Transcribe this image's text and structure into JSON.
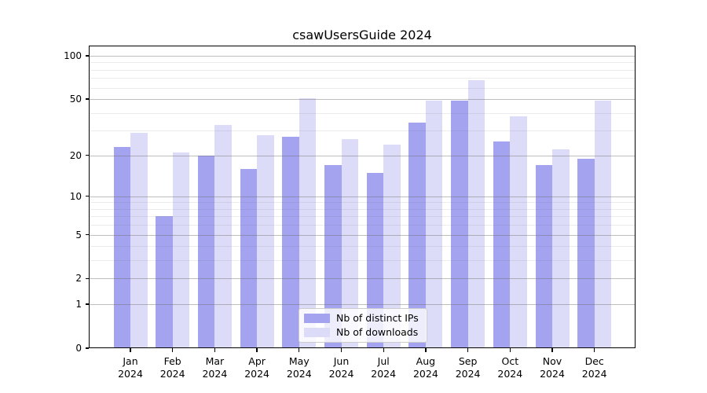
{
  "title": "csawUsersGuide 2024",
  "chart_data": {
    "type": "bar",
    "title": "csawUsersGuide 2024",
    "categories": [
      "Jan 2024",
      "Feb 2024",
      "Mar 2024",
      "Apr 2024",
      "May 2024",
      "Jun 2024",
      "Jul 2024",
      "Aug 2024",
      "Sep 2024",
      "Oct 2024",
      "Nov 2024",
      "Dec 2024"
    ],
    "series": [
      {
        "name": "Nb of distinct IPs",
        "color": "#a3a3f0",
        "values": [
          23,
          7,
          20,
          16,
          27,
          17,
          15,
          34,
          49,
          25,
          17,
          19
        ]
      },
      {
        "name": "Nb of downloads",
        "color": "#dcdcf8",
        "values": [
          29,
          21,
          33,
          28,
          51,
          26,
          24,
          49,
          68,
          38,
          22,
          49
        ]
      }
    ],
    "xlabel": "",
    "ylabel": "",
    "yscale": "log1p",
    "ylim": [
      0,
      118
    ],
    "yticks": [
      0,
      1,
      2,
      5,
      10,
      20,
      50,
      100
    ],
    "minor_yticks": [
      3,
      4,
      6,
      7,
      8,
      9,
      30,
      40,
      60,
      70,
      80,
      90
    ],
    "grid": true,
    "legend_position": "lower center",
    "grid_major_color": "#b4b4b4",
    "grid_minor_color": "#e9e9e9",
    "axis_color": "#000000",
    "background_color": "#ffffff"
  }
}
